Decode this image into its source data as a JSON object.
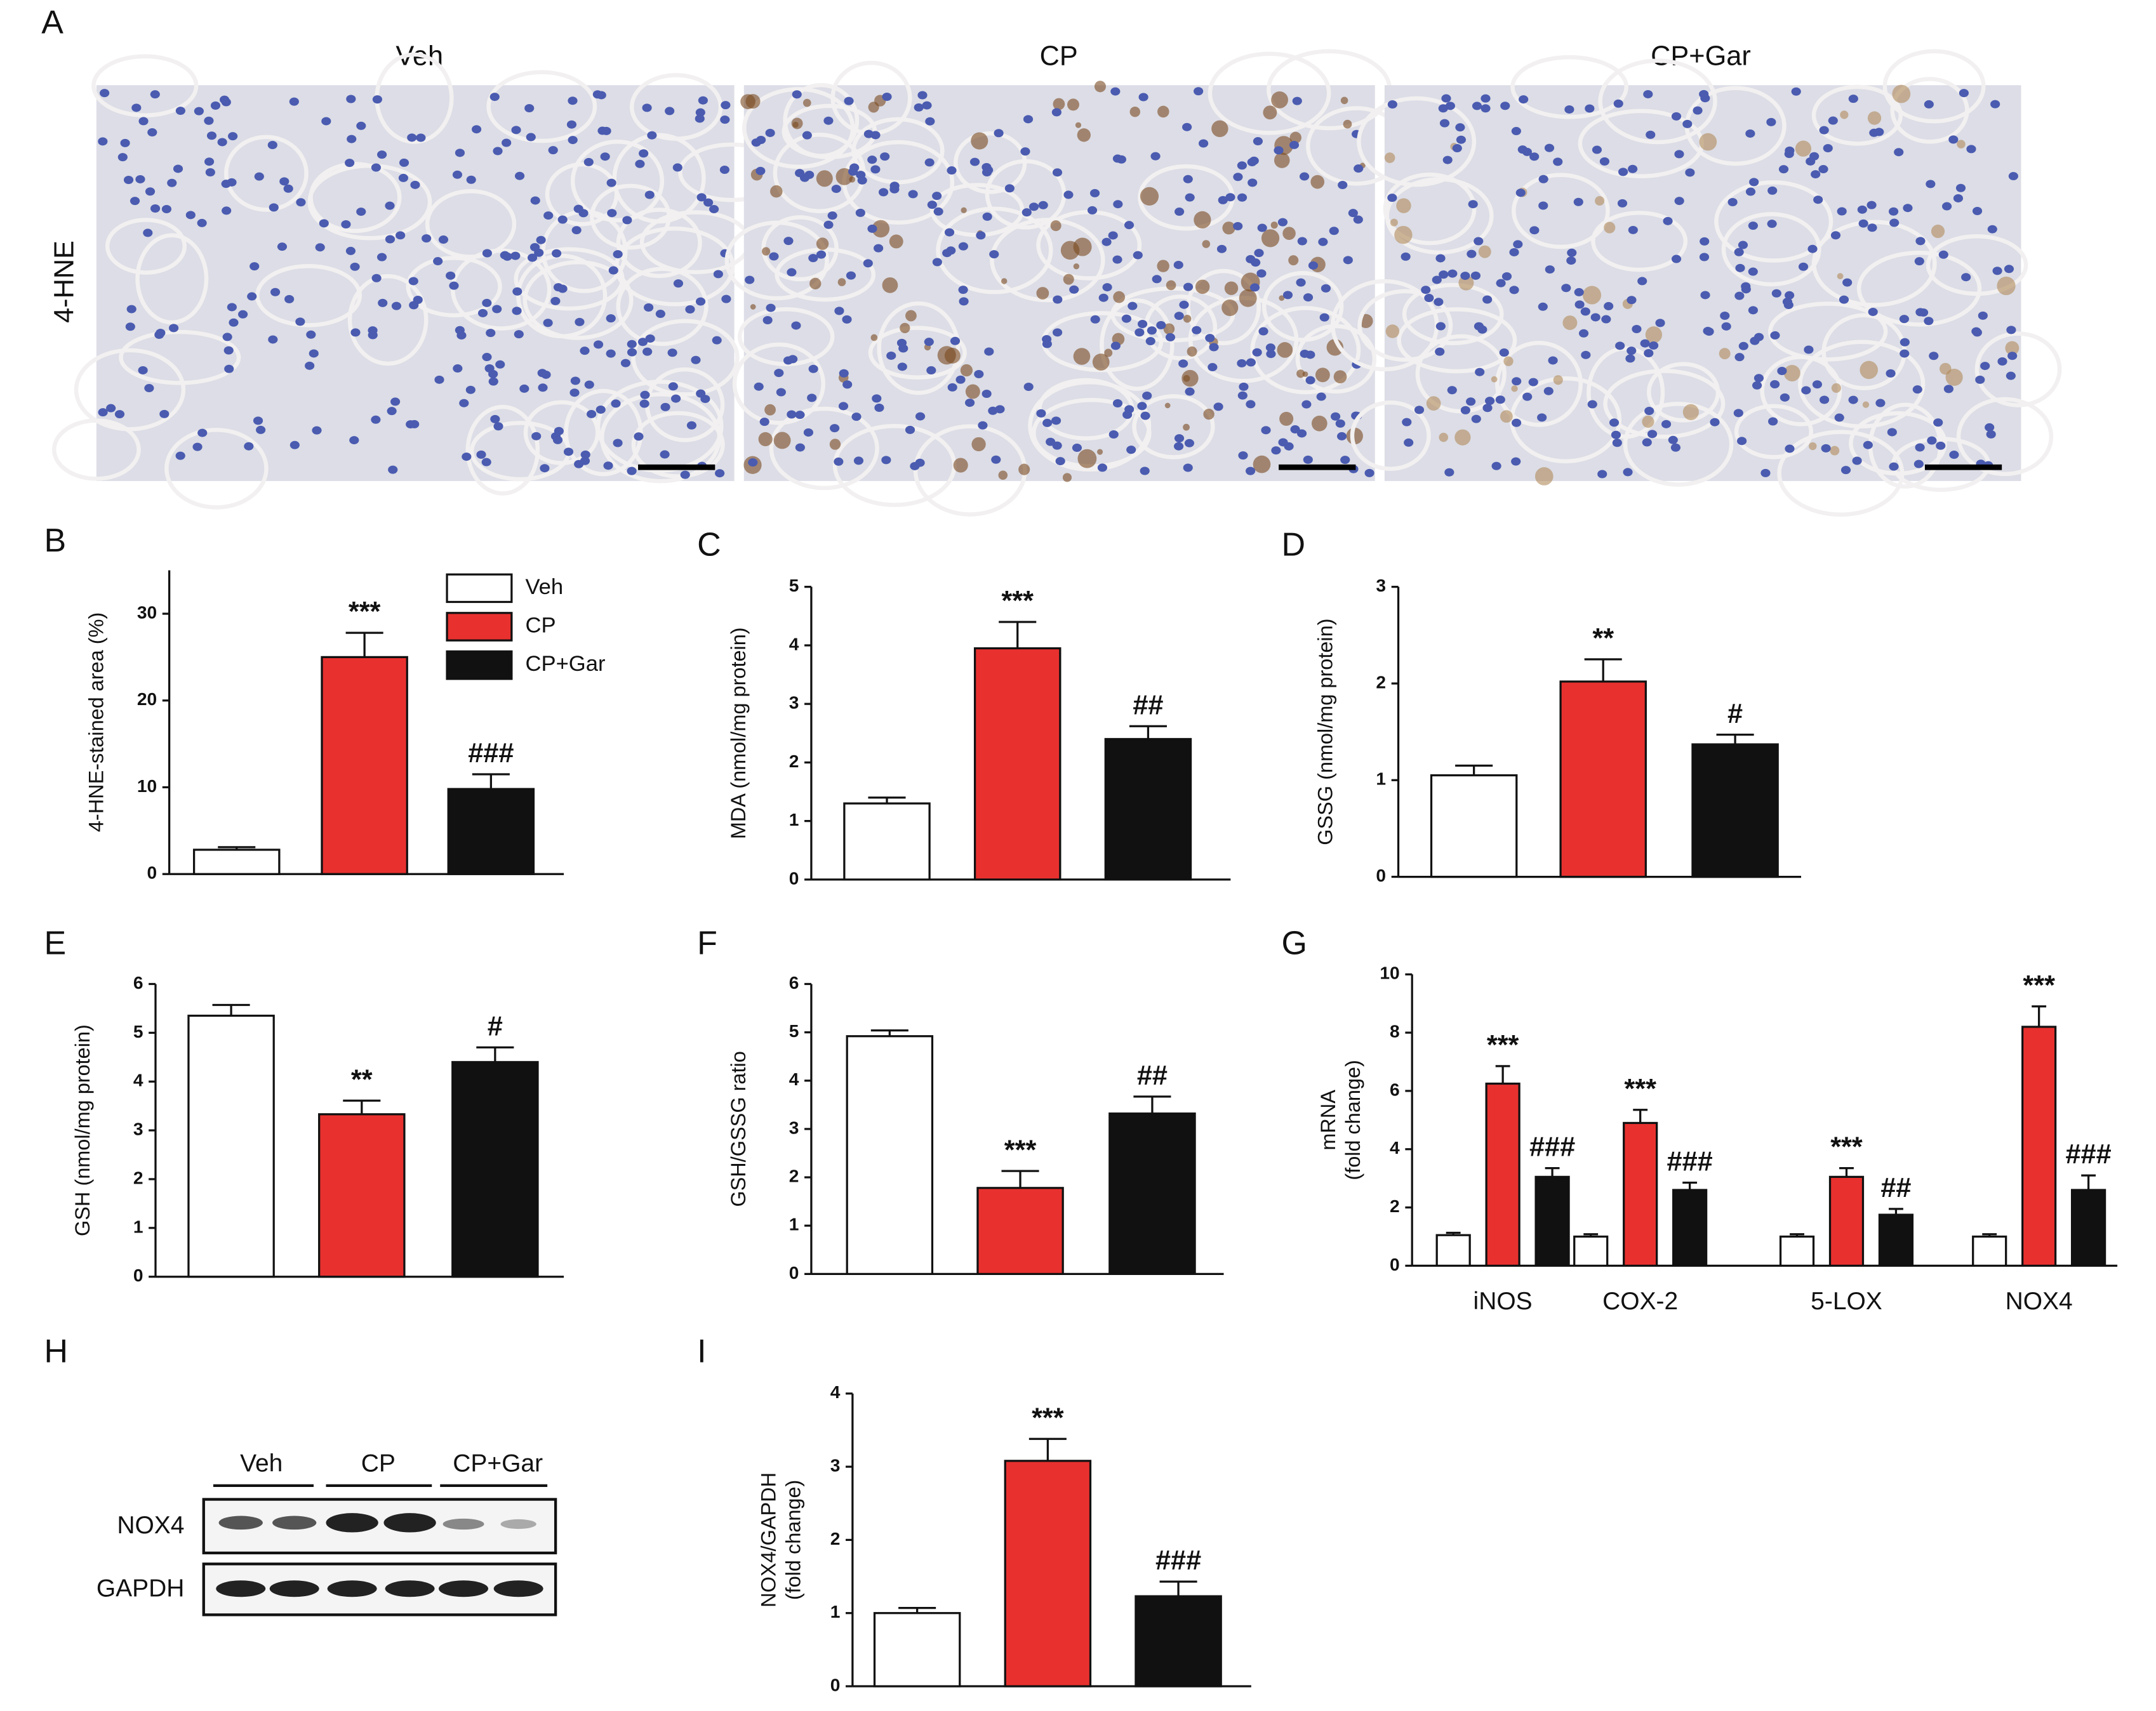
{
  "panel_labels": [
    "A",
    "B",
    "C",
    "D",
    "E",
    "F",
    "G",
    "H",
    "I"
  ],
  "histology": {
    "row_label": "4-HNE",
    "columns": [
      "Veh",
      "CP",
      "CP+Gar"
    ]
  },
  "western_blot": {
    "groups": [
      "Veh",
      "CP",
      "CP+Gar"
    ],
    "bands": [
      "NOX4",
      "GAPDH"
    ]
  },
  "chart_data": [
    {
      "type": "bar",
      "y_label": [
        "4-HNE-stained area (%)"
      ],
      "categories": [
        "Veh",
        "CP",
        "CP+Gar"
      ],
      "legend": true,
      "colors": [
        "#ffffff",
        "#e8312f",
        "#111111"
      ],
      "values": [
        2.8,
        25,
        9.8
      ],
      "errors": [
        0.3,
        2.8,
        1.7
      ],
      "annotations": [
        null,
        "***",
        "###"
      ],
      "ylim": [
        0,
        35
      ],
      "yticks": [
        0,
        10,
        20,
        30
      ]
    },
    {
      "type": "bar",
      "y_label": [
        "MDA  (nmol/mg protein)"
      ],
      "colors": [
        "#ffffff",
        "#e8312f",
        "#111111"
      ],
      "values": [
        1.3,
        3.95,
        2.4
      ],
      "errors": [
        0.1,
        0.45,
        0.22
      ],
      "annotations": [
        null,
        "***",
        "##"
      ],
      "ylim": [
        0,
        5
      ],
      "yticks": [
        0,
        1,
        2,
        3,
        4,
        5
      ]
    },
    {
      "type": "bar",
      "y_label": [
        "GSSG (nmol/mg protein)"
      ],
      "colors": [
        "#ffffff",
        "#e8312f",
        "#111111"
      ],
      "values": [
        1.05,
        2.02,
        1.37
      ],
      "errors": [
        0.1,
        0.23,
        0.1
      ],
      "annotations": [
        null,
        "**",
        "#"
      ],
      "ylim": [
        0,
        3
      ],
      "yticks": [
        0,
        1,
        2,
        3
      ]
    },
    {
      "type": "bar",
      "y_label": [
        "GSH (nmol/mg protein)"
      ],
      "colors": [
        "#ffffff",
        "#e8312f",
        "#111111"
      ],
      "values": [
        5.35,
        3.33,
        4.4
      ],
      "errors": [
        0.22,
        0.28,
        0.3
      ],
      "annotations": [
        null,
        "**",
        "#"
      ],
      "ylim": [
        0,
        6
      ],
      "yticks": [
        0,
        1,
        2,
        3,
        4,
        5,
        6
      ]
    },
    {
      "type": "bar",
      "y_label": [
        "GSH/GSSG ratio"
      ],
      "colors": [
        "#ffffff",
        "#e8312f",
        "#111111"
      ],
      "values": [
        4.92,
        1.78,
        3.32
      ],
      "errors": [
        0.12,
        0.35,
        0.35
      ],
      "annotations": [
        null,
        "***",
        "##"
      ],
      "ylim": [
        0,
        6
      ],
      "yticks": [
        0,
        1,
        2,
        3,
        4,
        5,
        6
      ]
    },
    {
      "type": "grouped_bar",
      "y_label": [
        "mRNA",
        "(fold change)"
      ],
      "categories": [
        "iNOS",
        "COX-2",
        "5-LOX",
        "NOX4"
      ],
      "series": [
        {
          "color": "#ffffff",
          "values": [
            1.05,
            1.0,
            1.0,
            1.0
          ],
          "errors": [
            0.08,
            0.08,
            0.08,
            0.08
          ]
        },
        {
          "color": "#e8312f",
          "values": [
            6.25,
            4.9,
            3.05,
            8.2
          ],
          "errors": [
            0.6,
            0.45,
            0.3,
            0.7
          ],
          "annotations": [
            "***",
            "***",
            "***",
            "***"
          ]
        },
        {
          "color": "#111111",
          "values": [
            3.05,
            2.6,
            1.75,
            2.6
          ],
          "errors": [
            0.3,
            0.25,
            0.2,
            0.5
          ],
          "annotations": [
            "###",
            "###",
            "##",
            "###"
          ]
        }
      ],
      "ylim": [
        0,
        10
      ],
      "yticks": [
        0,
        2,
        4,
        6,
        8,
        10
      ]
    },
    {
      "type": "bar",
      "y_label": [
        "NOX4/GAPDH",
        "(fold change)"
      ],
      "colors": [
        "#ffffff",
        "#e8312f",
        "#111111"
      ],
      "values": [
        1.0,
        3.08,
        1.23
      ],
      "errors": [
        0.07,
        0.3,
        0.2
      ],
      "annotations": [
        null,
        "***",
        "###"
      ],
      "ylim": [
        0,
        4
      ],
      "yticks": [
        0,
        1,
        2,
        3,
        4
      ]
    }
  ]
}
